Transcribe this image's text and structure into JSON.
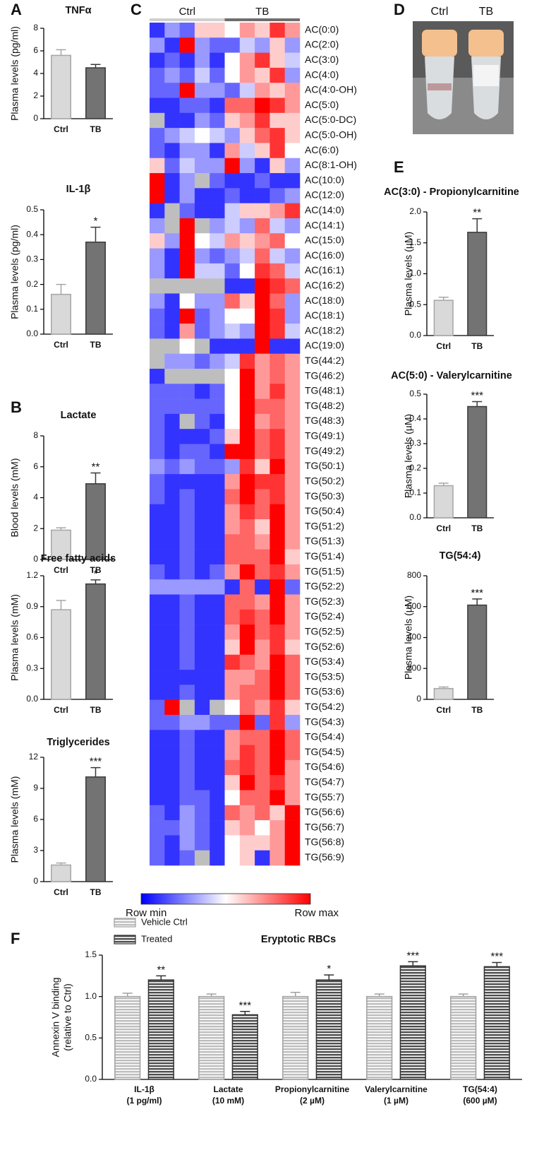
{
  "chart_data": [
    {
      "type": "bar",
      "panel": "A",
      "title": "TNFα",
      "y_label": "Plasma levels (pg/ml)",
      "categories": [
        "Ctrl",
        "TB"
      ],
      "values": [
        5.6,
        4.5
      ],
      "errors": [
        0.5,
        0.3
      ],
      "colors": [
        "#d9d9d9",
        "#737373"
      ],
      "edge_colors": [
        "#a6a6a6",
        "#3a3a3a"
      ],
      "ylim": [
        0,
        8
      ],
      "yticks": [
        0,
        2,
        4,
        6,
        8
      ]
    },
    {
      "type": "bar",
      "title": "IL-1β",
      "y_label": "Plasma levels (pg/ml)",
      "categories": [
        "Ctrl",
        "TB"
      ],
      "values": [
        0.16,
        0.37
      ],
      "errors": [
        0.04,
        0.06
      ],
      "annotations": [
        null,
        "*"
      ],
      "colors": [
        "#d9d9d9",
        "#737373"
      ],
      "edge_colors": [
        "#a6a6a6",
        "#3a3a3a"
      ],
      "ylim": [
        0,
        0.5
      ],
      "yticks": [
        {
          "value": 0,
          "label": "0.0"
        },
        0.1,
        0.2,
        0.3,
        0.4,
        0.5
      ]
    },
    {
      "type": "bar",
      "panel": "B",
      "title": "Lactate",
      "y_label": "Blood levels (mM)",
      "categories": [
        "Ctrl",
        "TB"
      ],
      "values": [
        1.9,
        4.9
      ],
      "errors": [
        0.15,
        0.7
      ],
      "annotations": [
        null,
        "**"
      ],
      "colors": [
        "#d9d9d9",
        "#737373"
      ],
      "edge_colors": [
        "#a6a6a6",
        "#3a3a3a"
      ],
      "ylim": [
        0,
        8
      ],
      "yticks": [
        0,
        2,
        4,
        6,
        8
      ]
    },
    {
      "type": "bar",
      "title": "Free fatty acids",
      "y_label": "Plasma levels (mM)",
      "categories": [
        "Ctrl",
        "TB"
      ],
      "values": [
        0.87,
        1.12
      ],
      "errors": [
        0.09,
        0.04
      ],
      "annotations": [
        null,
        "*"
      ],
      "colors": [
        "#d9d9d9",
        "#737373"
      ],
      "edge_colors": [
        "#a6a6a6",
        "#3a3a3a"
      ],
      "ylim": [
        0,
        1.2
      ],
      "yticks": [
        {
          "value": 0,
          "label": "0.0"
        },
        0.3,
        0.6,
        0.9,
        1.2
      ]
    },
    {
      "type": "bar",
      "title": "Triglycerides",
      "y_label": "Plasma levels (mM)",
      "categories": [
        "Ctrl",
        "TB"
      ],
      "values": [
        1.6,
        10.1
      ],
      "errors": [
        0.2,
        0.9
      ],
      "annotations": [
        null,
        "***"
      ],
      "colors": [
        "#d9d9d9",
        "#737373"
      ],
      "edge_colors": [
        "#a6a6a6",
        "#3a3a3a"
      ],
      "ylim": [
        0,
        12
      ],
      "yticks": [
        0,
        3,
        6,
        9,
        12
      ]
    },
    {
      "type": "heatmap",
      "panel": "C",
      "column_groups": [
        "Ctrl",
        "TB"
      ],
      "group_colors": [
        "#cfcfcf",
        "#6e6e6e"
      ],
      "colors": [
        "#0000ff",
        "#ffffff",
        "#ff0000"
      ],
      "missing_color": "#bebebe",
      "min_label": "Row min",
      "max_label": "Row max",
      "rows": [
        "AC(0:0)",
        "AC(2:0)",
        "AC(3:0)",
        "AC(4:0)",
        "AC(4:0-OH)",
        "AC(5:0)",
        "AC(5:0-DC)",
        "AC(5:0-OH)",
        "AC(6:0)",
        "AC(8:1-OH)",
        "AC(10:0)",
        "AC(12:0)",
        "AC(14:0)",
        "AC(14:1)",
        "AC(15:0)",
        "AC(16:0)",
        "AC(16:1)",
        "AC(16:2)",
        "AC(18:0)",
        "AC(18:1)",
        "AC(18:2)",
        "AC(19:0)",
        "TG(44:2)",
        "TG(46:2)",
        "TG(48:1)",
        "TG(48:2)",
        "TG(48:3)",
        "TG(49:1)",
        "TG(49:2)",
        "TG(50:1)",
        "TG(50:2)",
        "TG(50:3)",
        "TG(50:4)",
        "TG(51:2)",
        "TG(51:3)",
        "TG(51:4)",
        "TG(51:5)",
        "TG(52:2)",
        "TG(52:3)",
        "TG(52:4)",
        "TG(52:5)",
        "TG(52:6)",
        "TG(53:4)",
        "TG(53:5)",
        "TG(53:6)",
        "TG(54:2)",
        "TG(54:3)",
        "TG(54:4)",
        "TG(54:5)",
        "TG(54:6)",
        "TG(54:7)",
        "TG(55:7)",
        "TG(56:6)",
        "TG(56:7)",
        "TG(56:8)",
        "TG(56:9)"
      ],
      "values": [
        [
          0.1,
          0.3,
          0.2,
          0.6,
          0.6,
          0.5,
          0.7,
          0.6,
          0.9,
          0.7
        ],
        [
          0.3,
          0.1,
          1.0,
          0.3,
          0.2,
          0.2,
          0.4,
          0.3,
          0.6,
          0.3
        ],
        [
          0.1,
          0.2,
          0.1,
          0.3,
          0.1,
          0.5,
          0.7,
          0.9,
          0.6,
          0.4
        ],
        [
          0.2,
          0.3,
          0.2,
          0.4,
          0.2,
          0.5,
          0.7,
          0.6,
          0.9,
          0.3
        ],
        [
          0.2,
          0.2,
          1.0,
          0.3,
          0.3,
          0.2,
          0.4,
          0.7,
          0.6,
          0.7
        ],
        [
          0.1,
          0.1,
          0.2,
          0.2,
          0.1,
          0.8,
          0.8,
          1.0,
          0.9,
          0.7
        ],
        [
          null,
          0.1,
          0.1,
          0.3,
          0.2,
          0.6,
          0.7,
          0.9,
          0.6,
          0.6
        ],
        [
          0.2,
          0.3,
          0.4,
          0.5,
          0.4,
          0.3,
          0.6,
          0.8,
          0.9,
          0.6
        ],
        [
          0.2,
          0.1,
          0.3,
          0.3,
          0.1,
          0.7,
          0.4,
          0.6,
          0.9,
          0.5
        ],
        [
          0.6,
          0.2,
          0.4,
          0.3,
          0.3,
          1.0,
          0.3,
          0.1,
          0.6,
          0.3
        ],
        [
          1.0,
          0.1,
          0.3,
          null,
          0.2,
          0.1,
          0.1,
          0.2,
          0.1,
          0.1
        ],
        [
          1.0,
          0.1,
          0.3,
          0.1,
          0.1,
          0.2,
          0.1,
          0.1,
          0.2,
          0.3
        ],
        [
          0.1,
          null,
          0.2,
          0.1,
          0.1,
          0.4,
          0.6,
          0.6,
          0.7,
          0.9
        ],
        [
          0.3,
          null,
          1.0,
          null,
          0.3,
          0.4,
          0.3,
          0.8,
          0.4,
          0.3
        ],
        [
          0.6,
          0.3,
          1.0,
          0.5,
          0.4,
          0.7,
          0.6,
          0.7,
          0.8,
          0.5
        ],
        [
          0.3,
          0.1,
          1.0,
          0.3,
          0.2,
          0.3,
          0.4,
          0.8,
          0.4,
          0.3
        ],
        [
          0.3,
          0.1,
          1.0,
          0.4,
          0.4,
          0.2,
          0.5,
          0.9,
          0.8,
          0.4
        ],
        [
          null,
          null,
          null,
          null,
          null,
          0.1,
          0.1,
          1.0,
          0.9,
          0.8
        ],
        [
          0.3,
          0.1,
          0.5,
          0.3,
          0.3,
          0.8,
          0.6,
          1.0,
          0.8,
          0.3
        ],
        [
          0.2,
          0.1,
          1.0,
          0.2,
          0.3,
          0.5,
          0.5,
          1.0,
          0.9,
          0.3
        ],
        [
          0.2,
          0.1,
          0.7,
          0.2,
          0.3,
          0.4,
          0.3,
          1.0,
          0.9,
          0.4
        ],
        [
          null,
          null,
          0.5,
          null,
          0.1,
          0.1,
          0.1,
          1.0,
          0.1,
          0.1
        ],
        [
          null,
          0.3,
          0.3,
          0.2,
          0.3,
          0.4,
          0.9,
          0.7,
          0.8,
          0.7
        ],
        [
          0.1,
          null,
          null,
          null,
          null,
          0.5,
          1.0,
          0.7,
          0.8,
          0.7
        ],
        [
          0.2,
          0.2,
          0.2,
          0.1,
          0.2,
          0.5,
          1.0,
          0.7,
          0.9,
          0.7
        ],
        [
          0.2,
          0.2,
          0.2,
          0.2,
          0.2,
          0.5,
          1.0,
          0.8,
          0.8,
          0.7
        ],
        [
          0.2,
          0.1,
          null,
          0.2,
          0.1,
          0.5,
          1.0,
          0.7,
          0.8,
          0.7
        ],
        [
          0.2,
          0.1,
          0.1,
          0.1,
          0.2,
          0.6,
          1.0,
          0.8,
          0.9,
          0.7
        ],
        [
          0.2,
          0.1,
          0.2,
          0.2,
          0.1,
          1.0,
          1.0,
          0.8,
          0.9,
          0.7
        ],
        [
          0.3,
          0.2,
          0.3,
          0.2,
          0.2,
          0.3,
          0.9,
          0.6,
          1.0,
          0.7
        ],
        [
          0.2,
          0.1,
          0.1,
          0.1,
          0.1,
          0.7,
          1.0,
          0.9,
          0.9,
          0.7
        ],
        [
          0.2,
          0.1,
          0.2,
          0.1,
          0.1,
          0.8,
          1.0,
          0.8,
          0.9,
          0.7
        ],
        [
          0.1,
          0.1,
          0.2,
          0.1,
          0.1,
          0.7,
          0.9,
          0.8,
          1.0,
          0.7
        ],
        [
          0.1,
          0.1,
          0.2,
          0.1,
          0.1,
          0.7,
          0.8,
          0.6,
          1.0,
          0.7
        ],
        [
          0.1,
          0.1,
          0.2,
          0.1,
          0.1,
          0.8,
          0.8,
          0.7,
          1.0,
          0.7
        ],
        [
          0.1,
          0.1,
          0.2,
          0.1,
          0.1,
          0.8,
          0.8,
          0.8,
          1.0,
          0.6
        ],
        [
          0.2,
          0.1,
          0.2,
          0.1,
          0.2,
          0.7,
          1.0,
          0.8,
          0.9,
          0.7
        ],
        [
          0.3,
          0.3,
          0.3,
          0.3,
          0.3,
          0.1,
          0.8,
          0.1,
          1.0,
          0.2
        ],
        [
          0.1,
          0.1,
          0.2,
          0.1,
          0.1,
          0.8,
          0.8,
          0.7,
          1.0,
          0.7
        ],
        [
          0.1,
          0.1,
          0.2,
          0.1,
          0.1,
          0.8,
          0.9,
          0.8,
          1.0,
          0.7
        ],
        [
          0.1,
          0.1,
          0.2,
          0.1,
          0.1,
          0.7,
          1.0,
          0.8,
          0.9,
          0.7
        ],
        [
          0.1,
          0.1,
          0.2,
          0.1,
          0.1,
          0.6,
          1.0,
          0.7,
          0.9,
          0.6
        ],
        [
          0.1,
          0.1,
          0.2,
          0.1,
          0.1,
          0.9,
          0.8,
          0.7,
          1.0,
          0.8
        ],
        [
          0.1,
          0.1,
          0.1,
          0.1,
          0.1,
          0.7,
          0.7,
          0.8,
          1.0,
          0.8
        ],
        [
          0.1,
          0.1,
          0.2,
          0.1,
          0.1,
          0.7,
          0.8,
          0.8,
          1.0,
          0.8
        ],
        [
          0.2,
          1.0,
          null,
          0.1,
          null,
          0.5,
          0.8,
          0.7,
          0.9,
          0.6
        ],
        [
          0.2,
          0.2,
          0.3,
          0.3,
          0.2,
          0.2,
          1.0,
          0.2,
          0.9,
          0.3
        ],
        [
          0.1,
          0.1,
          0.2,
          0.1,
          0.1,
          0.7,
          0.8,
          0.8,
          1.0,
          0.8
        ],
        [
          0.1,
          0.1,
          0.2,
          0.1,
          0.1,
          0.7,
          0.9,
          0.8,
          1.0,
          0.8
        ],
        [
          0.1,
          0.1,
          0.2,
          0.1,
          0.1,
          0.8,
          0.9,
          0.8,
          1.0,
          0.7
        ],
        [
          0.1,
          0.1,
          0.2,
          0.1,
          0.1,
          0.6,
          1.0,
          0.8,
          0.9,
          0.7
        ],
        [
          0.1,
          0.1,
          0.2,
          0.2,
          0.1,
          0.5,
          0.8,
          0.8,
          1.0,
          0.7
        ],
        [
          0.2,
          0.1,
          0.3,
          0.2,
          0.1,
          0.8,
          0.7,
          0.8,
          0.6,
          1.0
        ],
        [
          0.2,
          0.2,
          0.3,
          0.2,
          0.1,
          0.6,
          0.7,
          0.5,
          0.7,
          1.0
        ],
        [
          0.2,
          0.1,
          0.3,
          0.2,
          0.1,
          0.5,
          0.6,
          0.6,
          0.7,
          1.0
        ],
        [
          0.2,
          0.1,
          0.2,
          null,
          0.1,
          0.5,
          0.6,
          0.1,
          0.7,
          1.0
        ]
      ]
    },
    {
      "type": "photo",
      "panel": "D",
      "labels": [
        "Ctrl",
        "TB"
      ]
    },
    {
      "type": "bar",
      "panel": "E",
      "title": "AC(3:0) - Propionylcarnitine",
      "y_label": "Plasma levels (µM)",
      "categories": [
        "Ctrl",
        "TB"
      ],
      "values": [
        0.57,
        1.67
      ],
      "errors": [
        0.05,
        0.22
      ],
      "annotations": [
        null,
        "**"
      ],
      "colors": [
        "#d9d9d9",
        "#737373"
      ],
      "edge_colors": [
        "#a6a6a6",
        "#3a3a3a"
      ],
      "ylim": [
        0,
        2
      ],
      "yticks": [
        {
          "value": 0,
          "label": "0.0"
        },
        0.5,
        {
          "value": 1,
          "label": "1.0"
        },
        1.5,
        {
          "value": 2,
          "label": "2.0"
        }
      ]
    },
    {
      "type": "bar",
      "title": "AC(5:0) - Valerylcarnitine",
      "y_label": "Plasma levels (µM)",
      "categories": [
        "Ctrl",
        "TB"
      ],
      "values": [
        0.13,
        0.45
      ],
      "errors": [
        0.01,
        0.02
      ],
      "annotations": [
        null,
        "***"
      ],
      "colors": [
        "#d9d9d9",
        "#737373"
      ],
      "edge_colors": [
        "#a6a6a6",
        "#3a3a3a"
      ],
      "ylim": [
        0,
        0.5
      ],
      "yticks": [
        {
          "value": 0,
          "label": "0.0"
        },
        0.1,
        0.2,
        0.3,
        0.4,
        0.5
      ]
    },
    {
      "type": "bar",
      "title": "TG(54:4)",
      "y_label": "Plasma levels (µM)",
      "categories": [
        "Ctrl",
        "TB"
      ],
      "values": [
        70,
        610
      ],
      "errors": [
        10,
        40
      ],
      "annotations": [
        null,
        "***"
      ],
      "colors": [
        "#d9d9d9",
        "#737373"
      ],
      "edge_colors": [
        "#a6a6a6",
        "#3a3a3a"
      ],
      "ylim": [
        0,
        800
      ],
      "yticks": [
        0,
        200,
        400,
        600,
        800
      ]
    },
    {
      "type": "grouped_bar",
      "panel": "F",
      "title": "Eryptotic RBCs",
      "y_label": [
        "Annexin V binding",
        "(relative to Ctrl)"
      ],
      "categories": [
        "IL-1β",
        "Lactate",
        "Propionylcarnitine",
        "Valerylcarnitine",
        "TG(54:4)"
      ],
      "category_concentrations": [
        "(1 pg/ml)",
        "(10 mM)",
        "(2 µM)",
        "(1 µM)",
        "(600 µM)"
      ],
      "series": [
        {
          "name": "Vehicle Ctrl",
          "color": "#bdbdbd",
          "edge_color": "#a0a0a0",
          "values": [
            1.0,
            1.0,
            1.0,
            1.0,
            1.0
          ],
          "errors": [
            0.04,
            0.03,
            0.05,
            0.03,
            0.03
          ]
        },
        {
          "name": "Treated",
          "color": "#4d4d4d",
          "edge_color": "#333333",
          "values": [
            1.2,
            0.78,
            1.2,
            1.37,
            1.36
          ],
          "errors": [
            0.05,
            0.04,
            0.06,
            0.05,
            0.05
          ],
          "annotations": [
            "**",
            "***",
            "*",
            "***",
            "***"
          ]
        }
      ],
      "ylim": [
        0,
        1.5
      ],
      "yticks": [
        {
          "value": 0,
          "label": "0.0"
        },
        0.5,
        {
          "value": 1,
          "label": "1.0"
        },
        1.5
      ]
    }
  ]
}
